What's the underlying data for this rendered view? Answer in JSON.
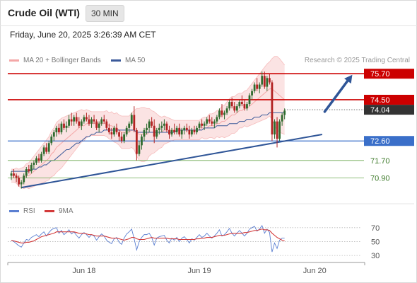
{
  "header": {
    "instrument": "Crude Oil (WTI)",
    "timeframe": "30 MIN",
    "datetime": "Friday, June 20, 2025 3:26:39 AM CET"
  },
  "legend": {
    "bollinger_label": "MA 20 + Bollinger Bands",
    "ma50_label": "MA 50",
    "credit": "Research © 2025 Trading Central"
  },
  "colors": {
    "bollinger": "#f4a7a7",
    "band_fill": "#fbe3e3",
    "ma50": "#3b5a9a",
    "candle_up": "#2e6b2e",
    "candle_down": "#b22222",
    "resistance": "#cc0000",
    "support": "#3a6fc9",
    "target": "#6aa84f",
    "trend": "#2f5597",
    "rsi": "#5b7fd1",
    "rsi_ma": "#d33a3a"
  },
  "rsi_legend": {
    "rsi_label": "RSI",
    "ma_label": "9MA"
  },
  "chart_data": [
    {
      "type": "candlestick",
      "ylim": [
        69.9,
        76.0
      ],
      "xlabel": "",
      "ylabel": "",
      "x_ticks": [
        {
          "label": "Jun 18",
          "index": 29
        },
        {
          "label": "Jun 19",
          "index": 75
        },
        {
          "label": "Jun 20",
          "index": 121
        }
      ],
      "levels": [
        {
          "value": 75.7,
          "label": "75.70",
          "kind": "resistance"
        },
        {
          "value": 74.5,
          "label": "74.50",
          "kind": "resistance"
        },
        {
          "value": 74.04,
          "label": "74.04",
          "kind": "current"
        },
        {
          "value": 72.6,
          "label": "72.60",
          "kind": "support"
        },
        {
          "value": 71.7,
          "label": "71.70",
          "kind": "target"
        },
        {
          "value": 70.9,
          "label": "70.90",
          "kind": "target"
        }
      ],
      "trendline": {
        "from": {
          "index": 4,
          "value": 70.45
        },
        "to": {
          "index": 124,
          "value": 72.9
        }
      },
      "projection": {
        "from": {
          "index": 125,
          "value": 73.95
        },
        "to": {
          "index": 136,
          "value": 75.65
        }
      },
      "candles": [
        [
          71.0,
          71.2,
          70.8,
          71.1
        ],
        [
          71.1,
          71.3,
          70.9,
          71.0
        ],
        [
          71.0,
          71.1,
          70.7,
          70.9
        ],
        [
          70.9,
          71.0,
          70.5,
          70.6
        ],
        [
          70.6,
          70.8,
          70.4,
          70.7
        ],
        [
          70.7,
          71.1,
          70.6,
          71.0
        ],
        [
          71.0,
          71.4,
          70.9,
          71.3
        ],
        [
          71.3,
          71.5,
          71.1,
          71.2
        ],
        [
          71.2,
          71.6,
          71.1,
          71.5
        ],
        [
          71.5,
          71.7,
          71.3,
          71.6
        ],
        [
          71.6,
          71.9,
          71.5,
          71.8
        ],
        [
          71.8,
          72.0,
          71.6,
          71.7
        ],
        [
          71.7,
          72.1,
          71.6,
          72.0
        ],
        [
          72.0,
          72.4,
          71.9,
          72.3
        ],
        [
          72.3,
          72.5,
          72.0,
          72.1
        ],
        [
          72.1,
          72.6,
          72.0,
          72.5
        ],
        [
          72.5,
          72.9,
          72.4,
          72.8
        ],
        [
          72.8,
          73.1,
          72.6,
          73.0
        ],
        [
          73.0,
          73.3,
          72.8,
          73.2
        ],
        [
          73.2,
          73.4,
          72.9,
          73.0
        ],
        [
          73.0,
          73.5,
          72.9,
          73.4
        ],
        [
          73.4,
          73.6,
          73.1,
          73.2
        ],
        [
          73.2,
          73.5,
          73.0,
          73.3
        ],
        [
          73.3,
          73.8,
          73.2,
          73.6
        ],
        [
          73.6,
          73.9,
          73.3,
          73.5
        ],
        [
          73.5,
          73.8,
          73.3,
          73.7
        ],
        [
          73.7,
          73.9,
          73.4,
          73.5
        ],
        [
          73.5,
          73.7,
          73.2,
          73.3
        ],
        [
          73.3,
          73.6,
          73.1,
          73.5
        ],
        [
          73.5,
          73.8,
          73.4,
          73.7
        ],
        [
          73.7,
          73.9,
          73.5,
          73.6
        ],
        [
          73.6,
          73.8,
          73.3,
          73.4
        ],
        [
          73.4,
          73.7,
          73.2,
          73.6
        ],
        [
          73.6,
          73.8,
          73.4,
          73.5
        ],
        [
          73.5,
          73.6,
          73.1,
          73.2
        ],
        [
          73.2,
          73.5,
          73.0,
          73.4
        ],
        [
          73.4,
          73.7,
          73.3,
          73.6
        ],
        [
          73.6,
          73.8,
          73.4,
          73.5
        ],
        [
          73.5,
          73.6,
          73.1,
          73.2
        ],
        [
          73.2,
          73.4,
          72.9,
          73.0
        ],
        [
          73.0,
          73.2,
          72.7,
          72.9
        ],
        [
          72.9,
          73.3,
          72.8,
          73.2
        ],
        [
          73.2,
          73.4,
          72.9,
          73.0
        ],
        [
          73.0,
          73.1,
          72.6,
          72.8
        ],
        [
          72.8,
          73.0,
          72.5,
          72.6
        ],
        [
          72.6,
          73.0,
          72.5,
          72.9
        ],
        [
          72.9,
          73.3,
          72.8,
          73.2
        ],
        [
          73.2,
          73.5,
          73.0,
          73.4
        ],
        [
          73.4,
          73.9,
          73.3,
          73.8
        ],
        [
          73.8,
          74.2,
          73.0,
          73.1
        ],
        [
          73.1,
          73.2,
          71.7,
          72.0
        ],
        [
          72.0,
          72.6,
          71.9,
          72.4
        ],
        [
          72.4,
          72.9,
          72.2,
          72.8
        ],
        [
          72.8,
          73.2,
          72.6,
          73.1
        ],
        [
          73.1,
          73.4,
          72.9,
          73.2
        ],
        [
          73.2,
          73.6,
          73.0,
          73.5
        ],
        [
          73.5,
          73.7,
          73.2,
          73.3
        ],
        [
          73.3,
          73.6,
          72.5,
          72.8
        ],
        [
          72.8,
          73.2,
          72.7,
          73.1
        ],
        [
          73.1,
          73.4,
          72.9,
          73.2
        ],
        [
          73.2,
          73.5,
          73.0,
          73.3
        ],
        [
          73.3,
          73.6,
          73.1,
          73.4
        ],
        [
          73.4,
          73.5,
          73.0,
          73.1
        ],
        [
          73.1,
          73.3,
          72.7,
          72.9
        ],
        [
          72.9,
          73.2,
          72.8,
          73.1
        ],
        [
          73.1,
          73.4,
          72.9,
          73.0
        ],
        [
          73.0,
          73.3,
          72.9,
          73.2
        ],
        [
          73.2,
          73.4,
          72.8,
          72.9
        ],
        [
          72.9,
          73.2,
          72.7,
          73.1
        ],
        [
          73.1,
          73.3,
          72.9,
          73.2
        ],
        [
          73.2,
          73.4,
          73.0,
          73.1
        ],
        [
          73.1,
          73.3,
          72.7,
          72.9
        ],
        [
          72.9,
          73.2,
          72.8,
          73.1
        ],
        [
          73.1,
          73.3,
          72.9,
          73.0
        ],
        [
          73.0,
          73.3,
          72.9,
          73.2
        ],
        [
          73.2,
          73.5,
          73.1,
          73.4
        ],
        [
          73.4,
          73.6,
          73.2,
          73.3
        ],
        [
          73.3,
          73.5,
          73.1,
          73.4
        ],
        [
          73.4,
          73.7,
          73.3,
          73.6
        ],
        [
          73.6,
          73.8,
          73.4,
          73.5
        ],
        [
          73.5,
          73.7,
          73.3,
          73.4
        ],
        [
          73.4,
          73.6,
          73.2,
          73.5
        ],
        [
          73.5,
          73.8,
          73.4,
          73.7
        ],
        [
          73.7,
          74.1,
          73.6,
          74.0
        ],
        [
          74.0,
          74.3,
          73.7,
          73.8
        ],
        [
          73.8,
          74.0,
          73.6,
          73.9
        ],
        [
          73.9,
          74.2,
          73.8,
          74.1
        ],
        [
          74.1,
          74.5,
          74.0,
          74.4
        ],
        [
          74.4,
          74.6,
          74.1,
          74.2
        ],
        [
          74.2,
          74.4,
          73.9,
          74.0
        ],
        [
          74.0,
          74.3,
          73.9,
          74.2
        ],
        [
          74.2,
          74.5,
          74.1,
          74.4
        ],
        [
          74.4,
          74.7,
          74.2,
          74.3
        ],
        [
          74.3,
          74.5,
          74.0,
          74.1
        ],
        [
          74.1,
          74.4,
          74.0,
          74.3
        ],
        [
          74.3,
          74.8,
          74.2,
          74.7
        ],
        [
          74.7,
          75.0,
          74.5,
          74.9
        ],
        [
          74.9,
          75.3,
          74.8,
          75.2
        ],
        [
          75.2,
          75.5,
          74.9,
          75.0
        ],
        [
          75.0,
          75.3,
          74.8,
          75.2
        ],
        [
          75.2,
          75.8,
          75.1,
          75.6
        ],
        [
          75.6,
          75.8,
          75.0,
          75.1
        ],
        [
          75.1,
          75.6,
          74.9,
          75.5
        ],
        [
          75.5,
          75.7,
          75.2,
          75.3
        ],
        [
          75.3,
          75.4,
          72.6,
          72.9
        ],
        [
          72.9,
          73.6,
          72.7,
          73.5
        ],
        [
          73.5,
          73.7,
          72.3,
          72.7
        ],
        [
          72.7,
          73.6,
          72.6,
          73.5
        ],
        [
          73.5,
          73.9,
          73.3,
          73.8
        ],
        [
          73.8,
          74.1,
          73.6,
          74.0
        ]
      ],
      "bollinger_mid": [
        71.0,
        71.0,
        71.0,
        70.9,
        70.9,
        70.9,
        71.0,
        71.0,
        71.1,
        71.2,
        71.3,
        71.4,
        71.5,
        71.6,
        71.7,
        71.8,
        72.0,
        72.1,
        72.3,
        72.4,
        72.5,
        72.6,
        72.7,
        72.8,
        72.9,
        73.0,
        73.1,
        73.2,
        73.3,
        73.3,
        73.4,
        73.4,
        73.4,
        73.4,
        73.4,
        73.4,
        73.4,
        73.4,
        73.4,
        73.3,
        73.3,
        73.2,
        73.2,
        73.1,
        73.0,
        73.0,
        73.0,
        73.0,
        73.1,
        73.1,
        73.0,
        72.9,
        72.9,
        72.9,
        72.9,
        73.0,
        73.0,
        73.0,
        73.0,
        73.0,
        73.0,
        73.1,
        73.1,
        73.1,
        73.1,
        73.1,
        73.1,
        73.1,
        73.1,
        73.1,
        73.1,
        73.1,
        73.1,
        73.1,
        73.1,
        73.1,
        73.2,
        73.2,
        73.2,
        73.3,
        73.3,
        73.3,
        73.4,
        73.4,
        73.5,
        73.5,
        73.6,
        73.7,
        73.8,
        73.8,
        73.9,
        74.0,
        74.0,
        74.1,
        74.1,
        74.2,
        74.3,
        74.4,
        74.5,
        74.6,
        74.7,
        74.8,
        74.9,
        75.0,
        75.0,
        74.9,
        74.8,
        74.7,
        74.6,
        74.5
      ],
      "bollinger_width": [
        0.3,
        0.3,
        0.35,
        0.4,
        0.45,
        0.5,
        0.55,
        0.6,
        0.65,
        0.7,
        0.75,
        0.8,
        0.85,
        0.9,
        0.95,
        1.0,
        1.05,
        1.1,
        1.15,
        1.15,
        1.15,
        1.1,
        1.05,
        1.0,
        0.95,
        0.9,
        0.85,
        0.8,
        0.75,
        0.7,
        0.65,
        0.6,
        0.55,
        0.55,
        0.55,
        0.55,
        0.55,
        0.55,
        0.6,
        0.6,
        0.65,
        0.65,
        0.7,
        0.7,
        0.75,
        0.75,
        0.75,
        0.75,
        0.8,
        0.9,
        1.1,
        1.2,
        1.25,
        1.25,
        1.2,
        1.1,
        1.0,
        0.95,
        0.85,
        0.75,
        0.7,
        0.65,
        0.6,
        0.55,
        0.5,
        0.45,
        0.45,
        0.45,
        0.45,
        0.45,
        0.45,
        0.45,
        0.45,
        0.45,
        0.45,
        0.45,
        0.45,
        0.5,
        0.5,
        0.55,
        0.55,
        0.6,
        0.6,
        0.65,
        0.7,
        0.75,
        0.8,
        0.85,
        0.85,
        0.85,
        0.85,
        0.8,
        0.8,
        0.8,
        0.85,
        0.9,
        0.95,
        1.0,
        1.05,
        1.1,
        1.15,
        1.2,
        1.25,
        1.25,
        1.4,
        1.6,
        1.7,
        1.7,
        1.65,
        1.6
      ],
      "ma50": [
        71.2,
        71.2,
        71.2,
        71.2,
        71.2,
        71.2,
        71.2,
        71.2,
        71.3,
        71.3,
        71.3,
        71.4,
        71.4,
        71.5,
        71.5,
        71.6,
        71.7,
        71.7,
        71.8,
        71.9,
        72.0,
        72.1,
        72.2,
        72.2,
        72.3,
        72.4,
        72.5,
        72.5,
        72.6,
        72.7,
        72.8,
        72.8,
        72.9,
        72.9,
        73.0,
        73.0,
        73.0,
        73.1,
        73.1,
        73.1,
        73.1,
        73.1,
        73.1,
        73.1,
        73.1,
        73.1,
        73.1,
        73.1,
        73.1,
        73.1,
        73.0,
        73.0,
        73.0,
        73.0,
        73.0,
        73.0,
        73.0,
        73.0,
        73.0,
        73.0,
        73.0,
        73.0,
        73.0,
        73.0,
        73.0,
        73.0,
        73.1,
        73.1,
        73.1,
        73.1,
        73.1,
        73.1,
        73.1,
        73.1,
        73.1,
        73.1,
        73.1,
        73.2,
        73.2,
        73.2,
        73.2,
        73.2,
        73.3,
        73.3,
        73.3,
        73.3,
        73.3,
        73.4,
        73.4,
        73.4,
        73.4,
        73.5,
        73.5,
        73.5,
        73.6,
        73.6,
        73.6,
        73.7,
        73.7,
        73.7,
        73.8,
        73.8,
        73.8,
        73.9,
        73.9,
        73.9,
        73.9,
        73.9,
        73.9,
        73.9
      ]
    },
    {
      "type": "line",
      "title": "",
      "ylim": [
        25,
        80
      ],
      "y_ticks": [
        70,
        50,
        30
      ],
      "series": [
        {
          "name": "RSI",
          "values": [
            52,
            50,
            47,
            44,
            42,
            48,
            53,
            52,
            56,
            58,
            60,
            57,
            61,
            64,
            58,
            63,
            67,
            69,
            70,
            62,
            66,
            60,
            63,
            67,
            61,
            64,
            59,
            55,
            60,
            63,
            60,
            56,
            60,
            58,
            52,
            57,
            61,
            58,
            52,
            49,
            47,
            54,
            56,
            49,
            46,
            55,
            61,
            64,
            68,
            54,
            38,
            50,
            56,
            60,
            60,
            62,
            56,
            45,
            55,
            57,
            58,
            59,
            52,
            48,
            55,
            52,
            56,
            50,
            55,
            57,
            53,
            48,
            54,
            52,
            56,
            60,
            56,
            58,
            62,
            58,
            55,
            58,
            62,
            67,
            58,
            60,
            64,
            69,
            62,
            58,
            62,
            66,
            62,
            58,
            62,
            68,
            70,
            72,
            65,
            68,
            73,
            62,
            68,
            63,
            35,
            48,
            40,
            52,
            55,
            55
          ]
        },
        {
          "name": "9MA",
          "values": [
            52,
            51,
            50,
            49,
            48,
            48,
            49,
            49,
            50,
            51,
            53,
            55,
            57,
            58,
            59,
            60,
            61,
            62,
            64,
            64,
            64,
            64,
            64,
            64,
            64,
            64,
            63,
            62,
            62,
            62,
            61,
            60,
            60,
            59,
            58,
            58,
            58,
            58,
            57,
            56,
            55,
            55,
            55,
            54,
            53,
            52,
            53,
            54,
            56,
            56,
            54,
            53,
            53,
            53,
            54,
            55,
            56,
            55,
            55,
            55,
            55,
            55,
            55,
            54,
            54,
            54,
            54,
            53,
            53,
            53,
            53,
            53,
            53,
            53,
            54,
            54,
            55,
            55,
            56,
            56,
            56,
            57,
            58,
            59,
            59,
            59,
            60,
            61,
            62,
            62,
            62,
            62,
            62,
            63,
            63,
            64,
            65,
            66,
            66,
            67,
            68,
            67,
            67,
            66,
            62,
            59,
            56,
            54,
            52,
            51
          ]
        }
      ]
    }
  ]
}
